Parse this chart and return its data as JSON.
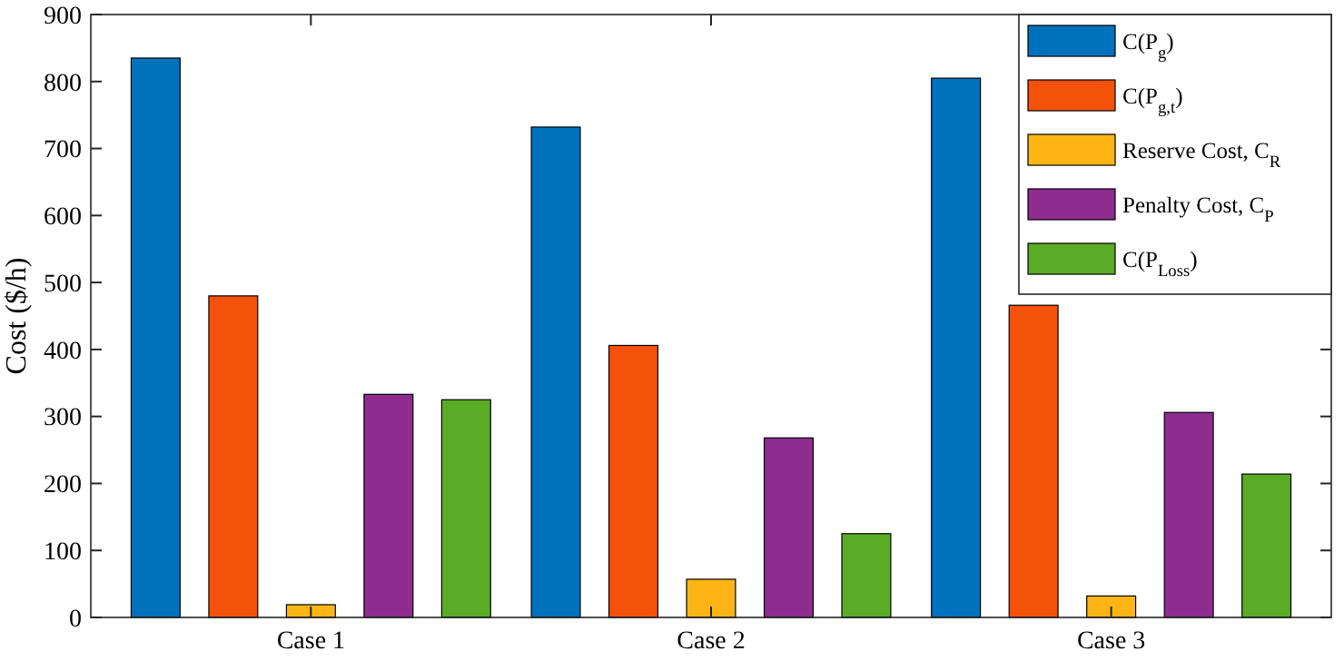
{
  "chart_data": {
    "type": "bar",
    "ylabel": "Cost ($/h)",
    "categories": [
      "Case 1",
      "Case 2",
      "Case 3"
    ],
    "ylim": [
      0,
      900
    ],
    "yticks": [
      0,
      100,
      200,
      300,
      400,
      500,
      600,
      700,
      800,
      900
    ],
    "grid": false,
    "legend": "top right",
    "series": [
      {
        "name": "C(P$_{g}$)",
        "color": "#0072bd",
        "values": [
          835,
          732,
          805
        ]
      },
      {
        "name": "C(P$_{g,t}$)",
        "color": "#f4510b",
        "values": [
          480,
          406,
          466
        ]
      },
      {
        "name": "Reserve Cost, C$_{R}$",
        "color": "#fdb515",
        "values": [
          19,
          57,
          32
        ]
      },
      {
        "name": "Penalty  Cost, C$_{P}$",
        "color": "#8e2c90",
        "values": [
          333,
          268,
          306
        ]
      },
      {
        "name": "C(P$_{Loss}$)",
        "color": "#5aab25",
        "values": [
          325,
          125,
          214
        ]
      }
    ]
  }
}
